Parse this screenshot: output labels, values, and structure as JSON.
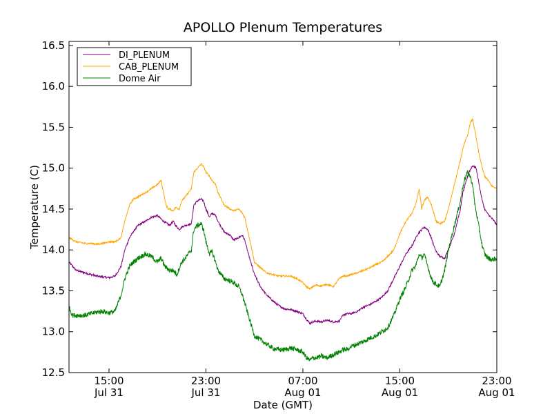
{
  "chart_data": {
    "type": "line",
    "title": "APOLLO Plenum Temperatures",
    "xlabel": "Date (GMT)",
    "ylabel": "Temperature (C)",
    "x_unit": "hours since 2010-07-31 00:00 GMT",
    "xlim": [
      11.7,
      47.0
    ],
    "ylim": [
      12.5,
      16.55
    ],
    "grid": false,
    "legend_position": "top-left",
    "yticks": [
      {
        "value": 12.5,
        "label": "12.5"
      },
      {
        "value": 13.0,
        "label": "13.0"
      },
      {
        "value": 13.5,
        "label": "13.5"
      },
      {
        "value": 14.0,
        "label": "14.0"
      },
      {
        "value": 14.5,
        "label": "14.5"
      },
      {
        "value": 15.0,
        "label": "15.0"
      },
      {
        "value": 15.5,
        "label": "15.5"
      },
      {
        "value": 16.0,
        "label": "16.0"
      },
      {
        "value": 16.5,
        "label": "16.5"
      }
    ],
    "xticks": [
      {
        "value": 15,
        "time": "15:00",
        "date": "Jul 31"
      },
      {
        "value": 23,
        "time": "23:00",
        "date": "Jul 31"
      },
      {
        "value": 31,
        "time": "07:00",
        "date": "Aug 01"
      },
      {
        "value": 39,
        "time": "15:00",
        "date": "Aug 01"
      },
      {
        "value": 47,
        "time": "23:00",
        "date": "Aug 01"
      }
    ],
    "series": [
      {
        "name": "DI_PLENUM",
        "color": "#800080",
        "x": [
          11.7,
          12.3,
          13.0,
          13.5,
          14.0,
          14.5,
          15.0,
          15.5,
          16.0,
          16.3,
          16.7,
          17.0,
          17.4,
          18.0,
          18.5,
          19.0,
          19.5,
          20.0,
          20.3,
          20.5,
          20.8,
          21.0,
          21.3,
          21.8,
          22.0,
          22.3,
          22.6,
          22.8,
          23.0,
          23.3,
          23.5,
          23.8,
          24.0,
          24.5,
          25.0,
          25.3,
          25.7,
          26.0,
          26.2,
          26.5,
          26.8,
          27.0,
          27.5,
          28.0,
          28.5,
          29.0,
          29.5,
          30.0,
          30.5,
          31.0,
          31.3,
          31.6,
          31.8,
          32.1,
          32.5,
          33.0,
          33.5,
          34.0,
          34.3,
          34.6,
          35.0,
          35.5,
          36.0,
          36.5,
          37.0,
          37.5,
          38.0,
          38.5,
          39.0,
          39.5,
          40.0,
          40.5,
          41.0,
          41.3,
          41.6,
          41.8,
          42.0,
          42.3,
          42.7,
          43.0,
          43.5,
          44.0,
          44.2,
          44.5,
          44.7,
          45.0,
          45.3,
          45.6,
          45.8,
          46.0,
          46.2,
          46.5,
          46.8,
          47.0
        ],
        "values": [
          13.85,
          13.75,
          13.72,
          13.7,
          13.68,
          13.67,
          13.66,
          13.68,
          13.8,
          14.0,
          14.15,
          14.22,
          14.3,
          14.35,
          14.4,
          14.42,
          14.35,
          14.3,
          14.35,
          14.3,
          14.25,
          14.28,
          14.3,
          14.32,
          14.55,
          14.6,
          14.62,
          14.6,
          14.5,
          14.4,
          14.45,
          14.42,
          14.35,
          14.22,
          14.18,
          14.12,
          14.15,
          14.18,
          14.12,
          13.95,
          13.8,
          13.7,
          13.55,
          13.45,
          13.38,
          13.32,
          13.28,
          13.27,
          13.25,
          13.22,
          13.15,
          13.1,
          13.12,
          13.13,
          13.12,
          13.14,
          13.12,
          13.13,
          13.2,
          13.22,
          13.22,
          13.25,
          13.3,
          13.33,
          13.37,
          13.42,
          13.5,
          13.65,
          13.8,
          13.95,
          14.05,
          14.2,
          14.28,
          14.25,
          14.15,
          14.05,
          13.98,
          13.92,
          13.9,
          14.0,
          14.2,
          14.5,
          14.7,
          14.85,
          14.95,
          15.03,
          15.0,
          14.75,
          14.6,
          14.5,
          14.45,
          14.4,
          14.35,
          14.3
        ]
      },
      {
        "name": "CAB_PLENUM",
        "color": "#ffa500",
        "x": [
          11.7,
          12.3,
          13.0,
          13.5,
          14.0,
          14.5,
          15.0,
          15.5,
          16.0,
          16.3,
          16.7,
          17.0,
          17.4,
          18.0,
          18.5,
          19.0,
          19.3,
          19.5,
          19.7,
          19.9,
          20.0,
          20.3,
          20.5,
          20.8,
          21.0,
          21.3,
          21.8,
          22.0,
          22.3,
          22.6,
          22.8,
          23.0,
          23.3,
          23.5,
          23.8,
          24.0,
          24.5,
          25.0,
          25.3,
          25.7,
          26.0,
          26.2,
          26.5,
          26.8,
          27.0,
          27.5,
          28.0,
          28.5,
          29.0,
          29.5,
          30.0,
          30.5,
          31.0,
          31.3,
          31.6,
          31.8,
          32.1,
          32.5,
          33.0,
          33.5,
          34.0,
          34.3,
          34.6,
          35.0,
          35.5,
          36.0,
          36.5,
          37.0,
          37.5,
          38.0,
          38.5,
          39.0,
          39.5,
          40.0,
          40.3,
          40.6,
          40.8,
          41.0,
          41.3,
          41.6,
          41.8,
          42.0,
          42.3,
          42.7,
          43.0,
          43.5,
          44.0,
          44.3,
          44.6,
          44.8,
          45.0,
          45.2,
          45.5,
          45.8,
          46.0,
          46.3,
          46.6,
          47.0
        ],
        "values": [
          14.15,
          14.1,
          14.08,
          14.08,
          14.07,
          14.08,
          14.1,
          14.1,
          14.15,
          14.35,
          14.55,
          14.62,
          14.65,
          14.7,
          14.75,
          14.8,
          14.85,
          14.7,
          14.55,
          14.5,
          14.5,
          14.48,
          14.52,
          14.5,
          14.6,
          14.65,
          14.75,
          14.95,
          15.0,
          15.05,
          15.02,
          14.95,
          14.9,
          14.85,
          14.8,
          14.7,
          14.55,
          14.5,
          14.48,
          14.5,
          14.45,
          14.4,
          14.2,
          14.0,
          13.85,
          13.78,
          13.72,
          13.7,
          13.68,
          13.68,
          13.68,
          13.65,
          13.6,
          13.55,
          13.52,
          13.55,
          13.57,
          13.56,
          13.58,
          13.55,
          13.65,
          13.68,
          13.68,
          13.7,
          13.72,
          13.75,
          13.78,
          13.82,
          13.85,
          13.92,
          14.0,
          14.2,
          14.35,
          14.45,
          14.55,
          14.75,
          14.5,
          14.6,
          14.65,
          14.55,
          14.45,
          14.35,
          14.32,
          14.35,
          14.5,
          14.8,
          15.1,
          15.3,
          15.4,
          15.55,
          15.6,
          15.45,
          15.2,
          15.0,
          14.9,
          14.85,
          14.78,
          14.75
        ]
      },
      {
        "name": "Dome Air",
        "color": "#008000",
        "x": [
          11.7,
          12.0,
          12.5,
          13.0,
          13.5,
          14.0,
          14.5,
          15.0,
          15.5,
          16.0,
          16.3,
          16.7,
          17.0,
          17.4,
          18.0,
          18.5,
          19.0,
          19.3,
          19.6,
          20.0,
          20.3,
          20.6,
          21.0,
          21.3,
          21.8,
          22.0,
          22.3,
          22.6,
          22.8,
          23.0,
          23.3,
          23.5,
          23.8,
          24.0,
          24.5,
          25.0,
          25.3,
          25.7,
          26.0,
          26.2,
          26.5,
          26.8,
          27.0,
          27.5,
          28.0,
          28.5,
          29.0,
          29.5,
          30.0,
          30.5,
          31.0,
          31.3,
          31.6,
          31.8,
          32.1,
          32.5,
          33.0,
          33.5,
          34.0,
          34.3,
          34.6,
          35.0,
          35.5,
          36.0,
          36.5,
          37.0,
          37.5,
          38.0,
          38.5,
          39.0,
          39.5,
          40.0,
          40.3,
          40.6,
          40.8,
          41.0,
          41.3,
          41.6,
          41.8,
          42.0,
          42.3,
          42.7,
          43.0,
          43.5,
          44.0,
          44.3,
          44.6,
          44.8,
          45.0,
          45.2,
          45.5,
          45.8,
          46.0,
          46.3,
          46.6,
          47.0
        ],
        "values": [
          13.3,
          13.2,
          13.2,
          13.2,
          13.22,
          13.24,
          13.25,
          13.23,
          13.25,
          13.45,
          13.65,
          13.8,
          13.85,
          13.9,
          13.95,
          13.92,
          13.85,
          13.9,
          13.8,
          13.75,
          13.75,
          13.7,
          13.85,
          13.9,
          14.0,
          14.25,
          14.3,
          14.32,
          14.25,
          14.1,
          13.95,
          13.98,
          13.85,
          13.75,
          13.65,
          13.62,
          13.6,
          13.55,
          13.45,
          13.35,
          13.2,
          13.05,
          12.95,
          12.9,
          12.85,
          12.8,
          12.78,
          12.78,
          12.8,
          12.78,
          12.75,
          12.68,
          12.65,
          12.68,
          12.68,
          12.7,
          12.68,
          12.72,
          12.75,
          12.78,
          12.78,
          12.82,
          12.85,
          12.88,
          12.92,
          12.95,
          13.0,
          13.05,
          13.2,
          13.4,
          13.55,
          13.75,
          13.8,
          13.95,
          13.9,
          13.95,
          13.8,
          13.65,
          13.6,
          13.58,
          13.55,
          13.75,
          14.0,
          14.3,
          14.6,
          14.85,
          14.95,
          14.9,
          14.8,
          14.55,
          14.3,
          14.05,
          13.95,
          13.9,
          13.88,
          13.9
        ]
      }
    ]
  }
}
